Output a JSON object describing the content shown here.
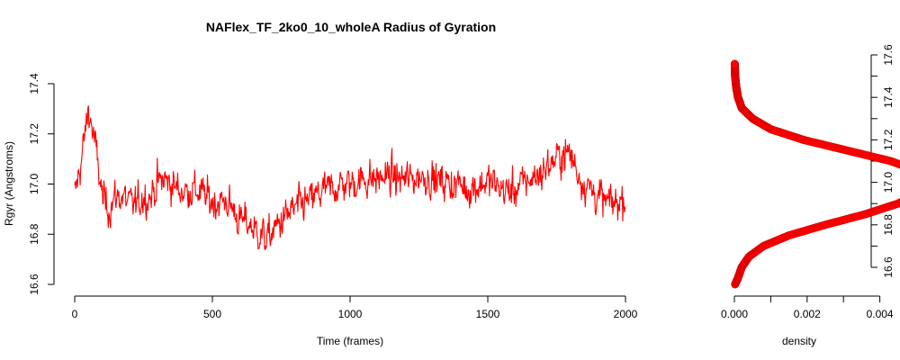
{
  "chart_data": [
    {
      "type": "line",
      "title": "NAFlex_TF_2ko0_10_wholeA Radius of Gyration",
      "xlabel": "Time (frames)",
      "ylabel": "Rgyr (Angstroms)",
      "xlim": [
        0,
        2000
      ],
      "ylim": [
        16.6,
        17.45
      ],
      "x_ticks": [
        "0",
        "500",
        "1000",
        "1500",
        "2000"
      ],
      "y_ticks": [
        "16.6",
        "16.8",
        "17.0",
        "17.2",
        "17.4"
      ],
      "color": "#ff0000",
      "grid": false,
      "series": [
        {
          "x": [
            0,
            25,
            50,
            75,
            100,
            125,
            150,
            175,
            200,
            225,
            250,
            275,
            300,
            325,
            350,
            375,
            400,
            425,
            450,
            475,
            500,
            525,
            550,
            575,
            600,
            625,
            650,
            675,
            700,
            725,
            750,
            775,
            800,
            825,
            850,
            875,
            900,
            925,
            950,
            975,
            1000,
            1025,
            1050,
            1075,
            1100,
            1125,
            1150,
            1175,
            1200,
            1225,
            1250,
            1275,
            1300,
            1325,
            1350,
            1375,
            1400,
            1425,
            1450,
            1475,
            1500,
            1525,
            1550,
            1575,
            1600,
            1625,
            1650,
            1675,
            1700,
            1725,
            1750,
            1775,
            1800,
            1825,
            1850,
            1875,
            1900,
            1925,
            1950,
            1975,
            2000
          ],
          "values": [
            16.95,
            17.1,
            17.3,
            17.15,
            16.95,
            16.9,
            16.95,
            16.95,
            16.92,
            16.92,
            16.95,
            16.95,
            17.0,
            17.02,
            17.0,
            16.98,
            16.97,
            16.98,
            16.97,
            16.95,
            16.93,
            16.93,
            16.93,
            16.9,
            16.85,
            16.85,
            16.82,
            16.8,
            16.78,
            16.82,
            16.85,
            16.88,
            16.9,
            16.92,
            16.93,
            16.95,
            16.97,
            16.98,
            16.99,
            17.0,
            17.0,
            17.01,
            17.02,
            17.02,
            17.02,
            17.03,
            17.03,
            17.02,
            17.02,
            17.02,
            17.03,
            17.03,
            17.02,
            17.01,
            17.01,
            17.0,
            17.0,
            16.98,
            16.99,
            17.0,
            17.01,
            17.0,
            16.98,
            16.97,
            16.98,
            17.0,
            17.02,
            17.03,
            17.05,
            17.08,
            17.1,
            17.12,
            17.12,
            17.05,
            17.0,
            16.98,
            16.95,
            16.93,
            16.92,
            16.93,
            16.95
          ]
        }
      ]
    },
    {
      "type": "line",
      "title": "",
      "xlabel": "density",
      "ylabel": "",
      "xlim": [
        0,
        0.005
      ],
      "ylim": [
        16.5,
        17.6
      ],
      "x_ticks": [
        "0.000",
        "0.002",
        "0.004"
      ],
      "y_ticks": [
        "16.6",
        "16.8",
        "17.0",
        "17.2",
        "17.4",
        "17.6"
      ],
      "color": "#ff0000",
      "grid": false,
      "series": [
        {
          "y": [
            16.52,
            16.55,
            16.6,
            16.65,
            16.7,
            16.75,
            16.8,
            16.85,
            16.9,
            16.95,
            17.0,
            17.05,
            17.1,
            17.15,
            17.2,
            17.25,
            17.3,
            17.35,
            17.4,
            17.45,
            17.5,
            17.56
          ],
          "x": [
            2e-05,
            0.0001,
            0.0002,
            0.0004,
            0.0008,
            0.0015,
            0.0025,
            0.0036,
            0.0045,
            0.0051,
            0.0053,
            0.0051,
            0.0043,
            0.0031,
            0.0019,
            0.001,
            0.0005,
            0.0002,
            0.0001,
            5e-05,
            2e-05,
            1e-05
          ]
        }
      ]
    }
  ]
}
